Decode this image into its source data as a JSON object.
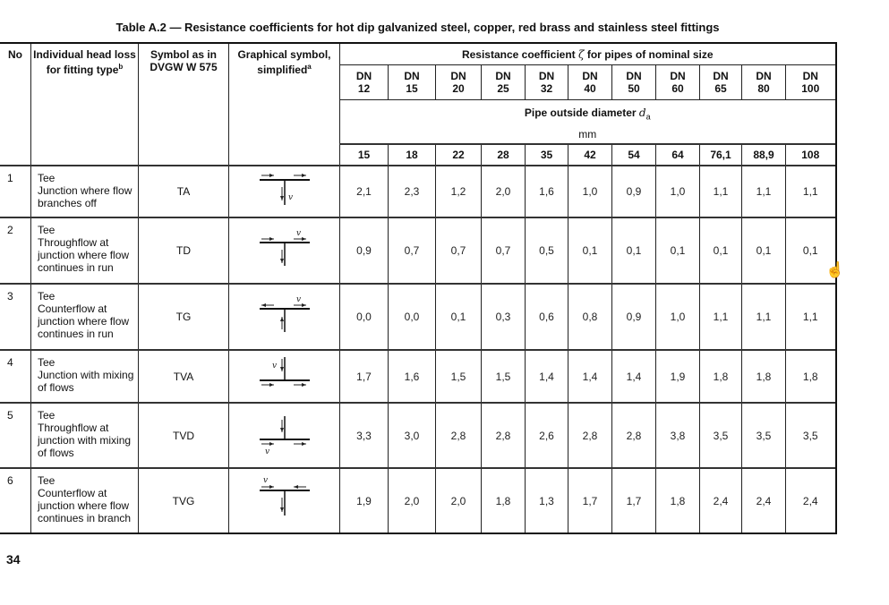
{
  "title": "Table A.2 — Resistance coefficients for hot dip galvanized steel, copper, red brass and stainless steel fittings",
  "headers": {
    "no": "No",
    "loss": "Individual head loss for fitting type",
    "loss_sup": "b",
    "symbol": "Symbol as in DVGW W 575",
    "graphic": "Graphical symbol, simplified",
    "graphic_sup": "a",
    "resistance_pre": "Resistance coefficient",
    "resistance_sym": "ζ",
    "resistance_post": "for pipes of nominal size",
    "pipe_od_pre": "Pipe outside diameter",
    "pipe_od_sym": "d",
    "pipe_od_sub": "a",
    "unit": "mm"
  },
  "nominal_sizes": [
    "DN 12",
    "DN 15",
    "DN 20",
    "DN 25",
    "DN 32",
    "DN 40",
    "DN 50",
    "DN 60",
    "DN 65",
    "DN 80",
    "DN 100"
  ],
  "outside_diameters": [
    "15",
    "18",
    "22",
    "28",
    "35",
    "42",
    "54",
    "64",
    "76,1",
    "88,9",
    "108"
  ],
  "rows": [
    {
      "no": "1",
      "desc": [
        "Tee",
        "Junction where flow branches off"
      ],
      "symbol": "TA",
      "graphic": "tee-branch-off-icon",
      "values": [
        "2,1",
        "2,3",
        "1,2",
        "2,0",
        "1,6",
        "1,0",
        "0,9",
        "1,0",
        "1,1",
        "1,1",
        "1,1"
      ]
    },
    {
      "no": "2",
      "desc": [
        "Tee",
        "Throughflow at junction where flow continues in run"
      ],
      "symbol": "TD",
      "graphic": "tee-throughflow-icon",
      "values": [
        "0,9",
        "0,7",
        "0,7",
        "0,7",
        "0,5",
        "0,1",
        "0,1",
        "0,1",
        "0,1",
        "0,1",
        "0,1"
      ]
    },
    {
      "no": "3",
      "desc": [
        "Tee",
        "Counterflow at junction where flow continues in run"
      ],
      "symbol": "TG",
      "graphic": "tee-counterflow-run-icon",
      "values": [
        "0,0",
        "0,0",
        "0,1",
        "0,3",
        "0,6",
        "0,8",
        "0,9",
        "1,0",
        "1,1",
        "1,1",
        "1,1"
      ]
    },
    {
      "no": "4",
      "desc": [
        "Tee",
        "Junction with mixing of flows"
      ],
      "symbol": "TVA",
      "graphic": "tee-mixing-icon",
      "values": [
        "1,7",
        "1,6",
        "1,5",
        "1,5",
        "1,4",
        "1,4",
        "1,4",
        "1,9",
        "1,8",
        "1,8",
        "1,8"
      ]
    },
    {
      "no": "5",
      "desc": [
        "Tee",
        "Throughflow at junction with mixing of flows"
      ],
      "symbol": "TVD",
      "graphic": "tee-throughflow-mixing-icon",
      "values": [
        "3,3",
        "3,0",
        "2,8",
        "2,8",
        "2,6",
        "2,8",
        "2,8",
        "3,8",
        "3,5",
        "3,5",
        "3,5"
      ]
    },
    {
      "no": "6",
      "desc": [
        "Tee",
        "Counterflow at junction where flow continues in branch"
      ],
      "symbol": "TVG",
      "graphic": "tee-counterflow-branch-icon",
      "values": [
        "1,9",
        "2,0",
        "2,0",
        "1,8",
        "1,3",
        "1,7",
        "1,7",
        "1,8",
        "2,4",
        "2,4",
        "2,4"
      ]
    }
  ],
  "velocity_label": "v",
  "page_number": "34"
}
